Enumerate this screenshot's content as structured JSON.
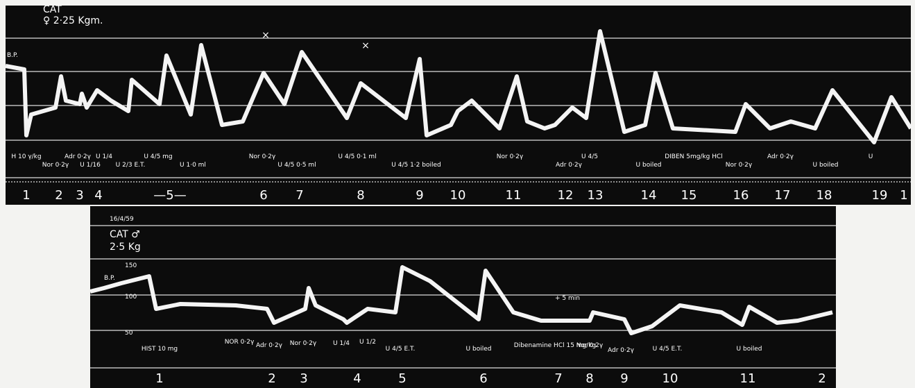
{
  "top_panel": {
    "title": "CAT",
    "subtitle": "♀ 2·25 Kgm.",
    "bp_label": "B.P.",
    "marks": [
      "×",
      "×"
    ],
    "injections": [
      "H 10 γ/kg",
      "Nor 0·2γ",
      "Adr 0·2γ",
      "U 1/16",
      "U 1/4",
      "U 2/3 E.T.",
      "U 4/5 mg",
      "U 1·0 ml",
      "Nor 0·2γ",
      "U 4/5 0·5 ml",
      "U 4/5 0·1 ml",
      "U 4/5 1·2 boiled",
      "Nor 0·2γ",
      "Adr 0·2γ",
      "U 4/5",
      "U boiled",
      "DIBEN 5mg/kg HCl",
      "Nor 0·2γ",
      "Adr 0·2γ",
      "U boiled",
      "U"
    ],
    "numbers": [
      "1",
      "2",
      "3",
      "4",
      "—5—",
      "6",
      "7",
      "8",
      "9",
      "10",
      "11",
      "12",
      "13",
      "14",
      "15",
      "16",
      "17",
      "18",
      "19",
      "1"
    ]
  },
  "bottom_panel": {
    "date": "16/4/59",
    "title": "CAT ♂",
    "subtitle": "2·5 Kg",
    "bp_label": "B.P.",
    "scale": [
      "150",
      "100",
      "50"
    ],
    "injections": [
      "HIST 10 mg",
      "NOR 0·2γ",
      "Adr 0·2γ",
      "Nor 0·2γ",
      "U 1/4",
      "U 1/2",
      "U 4/5 E.T.",
      "U boiled",
      "Dibenamine HCl 15 mg/kg",
      "+ 5 min",
      "Nor 0·2γ",
      "Adr 0·2γ",
      "U 4/5 E.T.",
      "U boiled"
    ],
    "numbers": [
      "1",
      "2",
      "3",
      "4",
      "5",
      "6",
      "7",
      "8",
      "9",
      "10",
      "11",
      "2"
    ]
  }
}
